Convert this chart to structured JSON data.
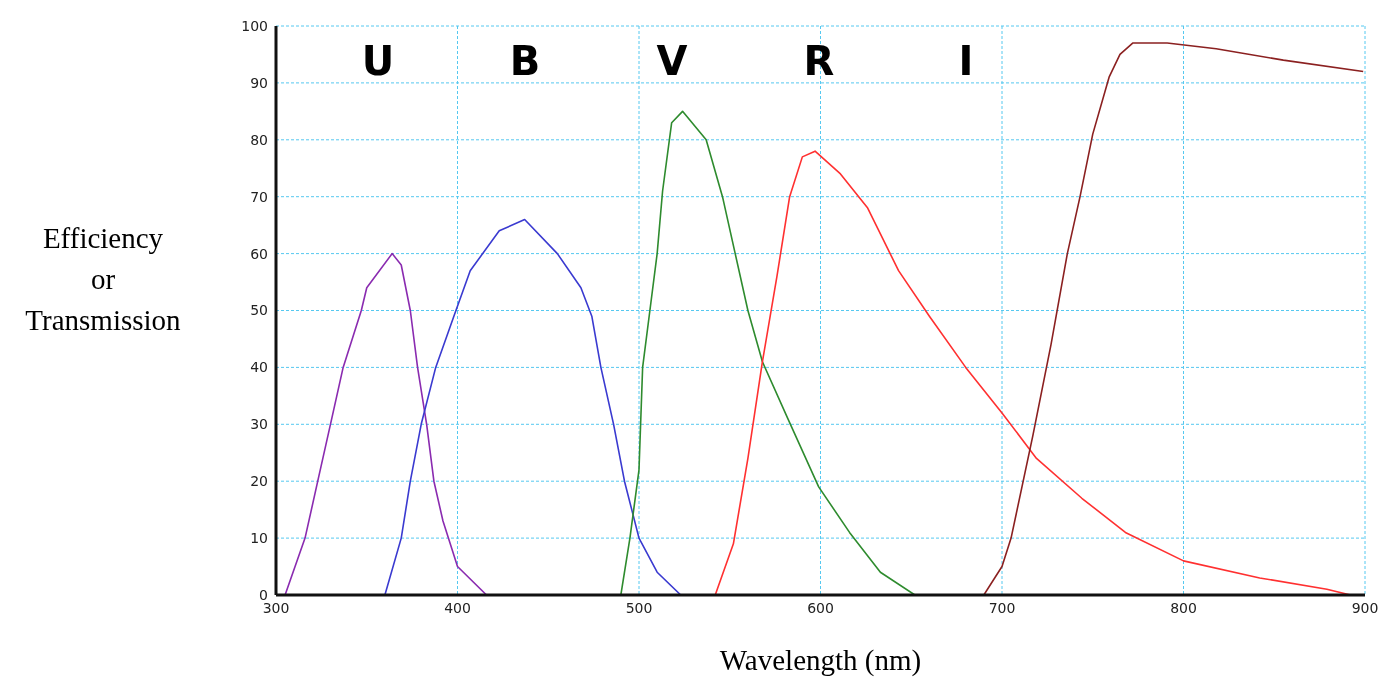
{
  "chart_data": {
    "type": "line",
    "xlabel": "Wavelength (nm)",
    "ylabel": "Efficiency or Transmission",
    "xlim": [
      300,
      900
    ],
    "xticks": [
      300,
      400,
      500,
      600,
      700,
      800,
      900
    ],
    "ylim": [
      0,
      100
    ],
    "yticks": [
      0,
      10,
      20,
      30,
      40,
      50,
      60,
      70,
      80,
      90,
      100
    ],
    "grid": true,
    "marker": "none",
    "line_style": "solid",
    "series": [
      {
        "color": "#8a2bb0",
        "x": [
          305,
          316,
          323,
          330,
          337,
          347,
          350,
          364,
          369,
          374,
          378,
          383,
          387,
          392,
          400,
          416
        ],
        "values": [
          0,
          10,
          20,
          30,
          40,
          50,
          54,
          60,
          58,
          50,
          40,
          30,
          20,
          13,
          5,
          0
        ]
      },
      {
        "color": "#3a3ad0",
        "x": [
          360,
          369,
          374,
          380,
          388,
          398,
          407,
          423,
          437,
          455,
          468,
          474,
          479,
          486,
          492,
          500,
          510,
          523
        ],
        "values": [
          0,
          10,
          20,
          30,
          40,
          49,
          57,
          64,
          66,
          60,
          54,
          49,
          40,
          30,
          20,
          10,
          4,
          0
        ]
      },
      {
        "color": "#2e8b2e",
        "x": [
          490,
          495,
          500,
          502,
          506,
          510,
          513,
          518,
          524,
          537,
          546,
          553,
          560,
          568,
          582,
          599,
          616,
          633,
          652
        ],
        "values": [
          0,
          10,
          22,
          40,
          50,
          60,
          71,
          83,
          85,
          80,
          70,
          60,
          50,
          41,
          31,
          19,
          11,
          4,
          0
        ]
      },
      {
        "color": "#ff3030",
        "x": [
          542,
          552,
          560,
          568,
          576,
          583,
          590,
          597,
          611,
          626,
          643,
          660,
          680,
          700,
          719,
          744,
          768,
          800,
          842,
          879,
          892
        ],
        "values": [
          0,
          9,
          24,
          41,
          56,
          70,
          77,
          78,
          74,
          68,
          57,
          49,
          40,
          32,
          24,
          17,
          11,
          6,
          3,
          1,
          0
        ]
      },
      {
        "color": "#8b2020",
        "x": [
          690,
          700,
          705,
          717,
          727,
          736,
          743,
          750,
          759,
          765,
          772,
          791,
          818,
          855,
          899
        ],
        "values": [
          0,
          5,
          10,
          28,
          44,
          60,
          70,
          81,
          91,
          95,
          97,
          97,
          96,
          94,
          92
        ]
      }
    ],
    "annotations": [
      "U",
      "B",
      "V",
      "R",
      "I"
    ]
  }
}
